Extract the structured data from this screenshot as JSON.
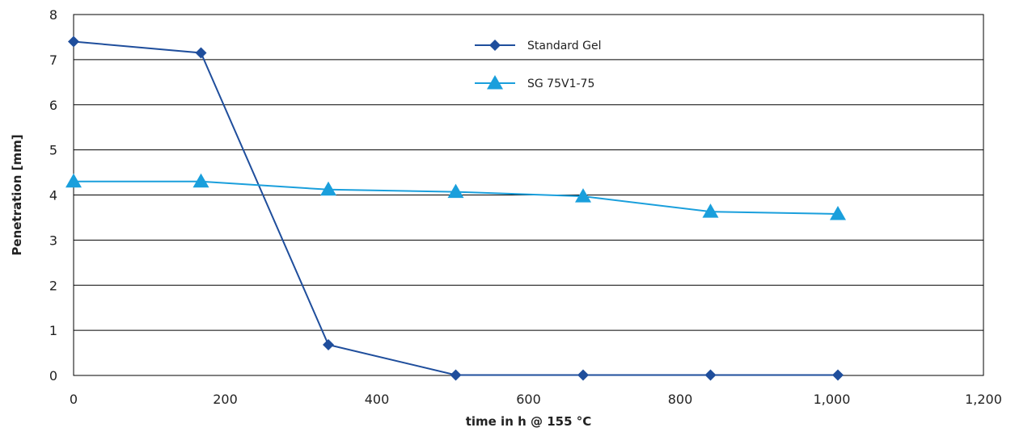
{
  "chart_data": {
    "type": "line",
    "title": "",
    "xlabel": "time in h @ 155 °C",
    "ylabel": "Penetration [mm]",
    "xlim": [
      0,
      1200
    ],
    "ylim": [
      0,
      8
    ],
    "x_ticks": [
      0,
      200,
      400,
      600,
      800,
      1000,
      1200
    ],
    "x_tick_labels": [
      "0",
      "200",
      "400",
      "600",
      "800",
      "1,000",
      "1,200"
    ],
    "y_ticks": [
      0,
      1,
      2,
      3,
      4,
      5,
      6,
      7,
      8
    ],
    "y_tick_labels": [
      "0",
      "1",
      "2",
      "3",
      "4",
      "5",
      "6",
      "7",
      "8"
    ],
    "grid": "horizontal",
    "legend_position": "top-center",
    "series": [
      {
        "name": "Standard Gel",
        "marker": "diamond",
        "color": "#1f4e9c",
        "x": [
          0,
          168,
          336,
          504,
          672,
          840,
          1008
        ],
        "y": [
          7.4,
          7.15,
          0.68,
          0.01,
          0.01,
          0.01,
          0.01
        ]
      },
      {
        "name": "SG 75V1-75",
        "marker": "triangle",
        "color": "#1a9fdc",
        "x": [
          0,
          168,
          336,
          504,
          672,
          840,
          1008
        ],
        "y": [
          4.3,
          4.3,
          4.12,
          4.07,
          3.97,
          3.63,
          3.58
        ]
      }
    ]
  }
}
